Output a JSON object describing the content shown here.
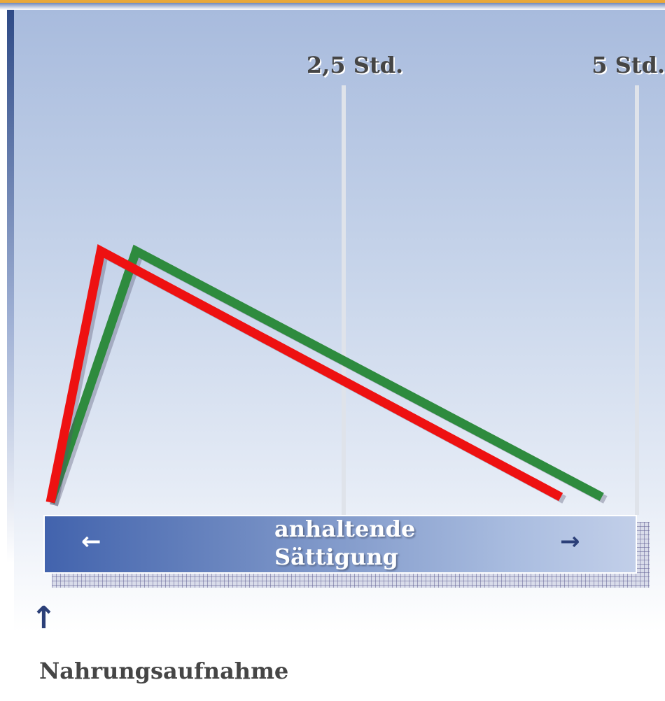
{
  "chart_data": {
    "type": "line",
    "title": "",
    "xlabel": "",
    "ylabel": "",
    "x_unit_ticks": [
      {
        "value": 2.5,
        "label": "2,5 Std."
      },
      {
        "value": 5,
        "label": "5 Std."
      }
    ],
    "xlim": [
      0,
      5
    ],
    "ylim": [
      0,
      1
    ],
    "grid": false,
    "series": [
      {
        "color": "#ee1111",
        "points": [
          [
            0,
            0
          ],
          [
            0.43,
            0.95
          ],
          [
            4.35,
            0.02
          ]
        ]
      },
      {
        "color": "#2e8b3e",
        "points": [
          [
            0,
            0
          ],
          [
            0.73,
            0.95
          ],
          [
            4.7,
            0.02
          ]
        ]
      }
    ],
    "annotations": {
      "band_line1": "anhaltende",
      "band_line2": "Sättigung",
      "start_label": "Nahrungsaufnahme"
    }
  },
  "colors": {
    "accent_top": "#e9a83a",
    "band": "#4263ad"
  }
}
